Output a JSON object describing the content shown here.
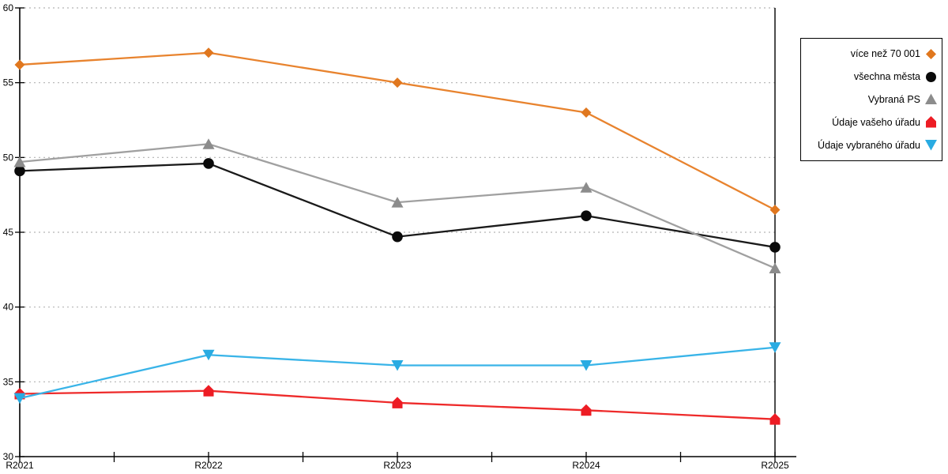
{
  "chart_data": {
    "type": "line",
    "title": "",
    "xlabel": "",
    "ylabel": "",
    "categories": [
      "R2021",
      "R2022",
      "R2023",
      "R2024",
      "R2025"
    ],
    "series": [
      {
        "name": "více než 70 001",
        "marker": "diamond",
        "color": "#E0771E",
        "line_color": "#E8832E",
        "values": [
          56.2,
          57.0,
          55.0,
          53.0,
          46.5
        ]
      },
      {
        "name": "všechna města",
        "marker": "circle",
        "color": "#0A0A0A",
        "line_color": "#1A1A1A",
        "values": [
          49.1,
          49.6,
          44.7,
          46.1,
          44.0
        ]
      },
      {
        "name": "Vybraná PS",
        "marker": "triangle-up",
        "color": "#8C8C8C",
        "line_color": "#A0A0A0",
        "values": [
          49.7,
          50.9,
          47.0,
          48.0,
          42.6
        ]
      },
      {
        "name": "Údaje vašeho úřadu",
        "marker": "pentagon",
        "color": "#ED1C24",
        "line_color": "#EE2A2A",
        "values": [
          34.2,
          34.4,
          33.6,
          33.1,
          32.5
        ]
      },
      {
        "name": "Údaje vybraného úřadu",
        "marker": "triangle-down",
        "color": "#29ABE2",
        "line_color": "#39B4E8",
        "values": [
          33.9,
          36.8,
          36.1,
          36.1,
          37.3
        ]
      }
    ],
    "ylim": [
      30,
      60
    ],
    "yticks": [
      30,
      35,
      40,
      45,
      50,
      55,
      60
    ],
    "grid": "horizontal-dotted",
    "grid_color": "#B3B3B3",
    "axis_color": "#000000",
    "legend_position": "top-right"
  }
}
